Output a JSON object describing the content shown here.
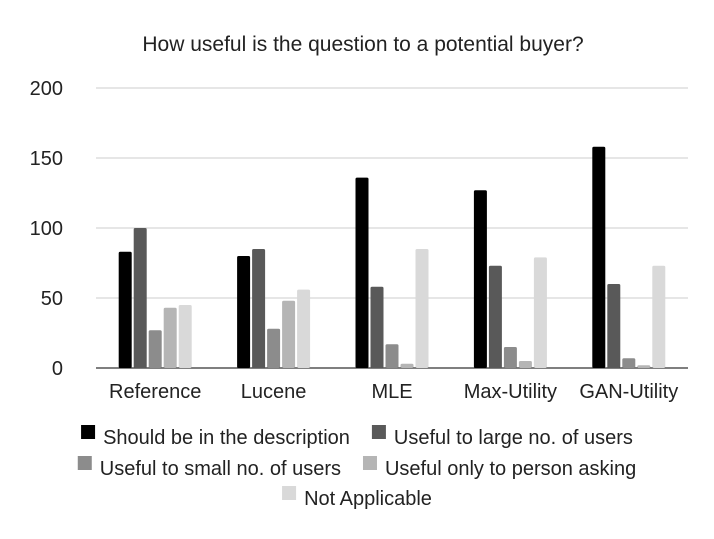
{
  "chart_data": {
    "type": "bar",
    "title": "How useful is the question to a potential buyer?",
    "xlabel": "",
    "ylabel": "",
    "ylim": [
      0,
      200
    ],
    "yticks": [
      0,
      50,
      100,
      150,
      200
    ],
    "grid": true,
    "legend_position": "bottom",
    "categories": [
      "Reference",
      "Lucene",
      "MLE",
      "Max-Utility",
      "GAN-Utility"
    ],
    "series": [
      {
        "name": "Should be in the description",
        "color": "#000000",
        "values": [
          83,
          80,
          136,
          127,
          158
        ]
      },
      {
        "name": "Useful to large no. of users",
        "color": "#595959",
        "values": [
          100,
          85,
          58,
          73,
          60
        ]
      },
      {
        "name": "Useful to small no. of users",
        "color": "#8c8c8c",
        "values": [
          27,
          28,
          17,
          15,
          7
        ]
      },
      {
        "name": "Useful only to person asking",
        "color": "#b5b5b5",
        "values": [
          43,
          48,
          3,
          5,
          2
        ]
      },
      {
        "name": "Not Applicable",
        "color": "#d9d9d9",
        "values": [
          45,
          56,
          85,
          79,
          73
        ]
      }
    ]
  }
}
